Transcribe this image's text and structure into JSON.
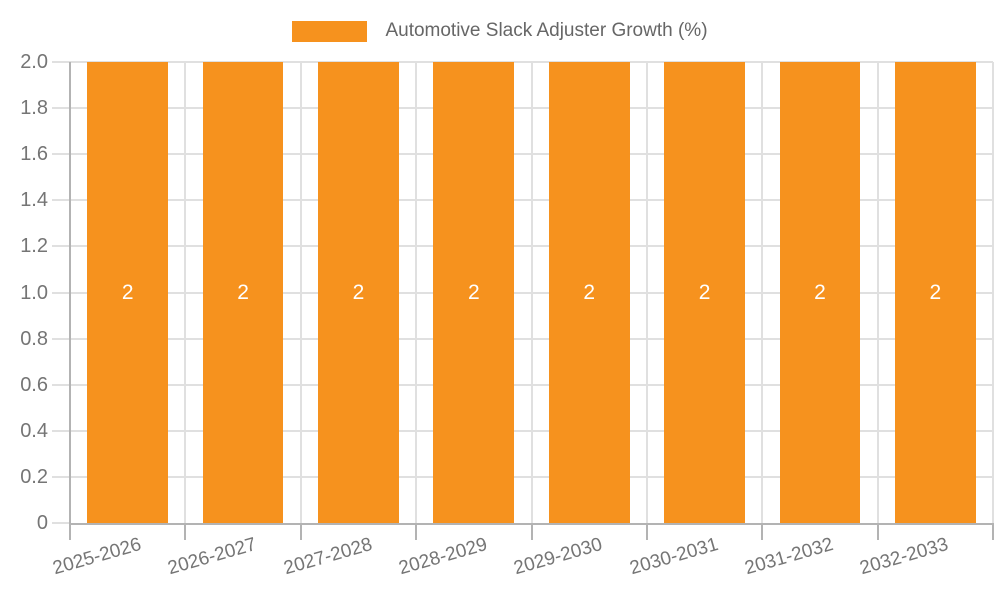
{
  "legend": {
    "label": "Automotive Slack Adjuster Growth (%)"
  },
  "chart_data": {
    "type": "bar",
    "title": "Automotive Slack Adjuster Growth (%)",
    "categories": [
      "2025-2026",
      "2026-2027",
      "2027-2028",
      "2028-2029",
      "2029-2030",
      "2030-2031",
      "2031-2032",
      "2032-2033"
    ],
    "series": [
      {
        "name": "Automotive Slack Adjuster Growth (%)",
        "values": [
          2,
          2,
          2,
          2,
          2,
          2,
          2,
          2
        ]
      }
    ],
    "values": [
      2,
      2,
      2,
      2,
      2,
      2,
      2,
      2
    ],
    "bar_value_labels": [
      "2",
      "2",
      "2",
      "2",
      "2",
      "2",
      "2",
      "2"
    ],
    "xlabel": "",
    "ylabel": "",
    "ylim": [
      0,
      2
    ],
    "yticks": [
      0,
      0.2,
      0.4,
      0.6,
      0.8,
      1.0,
      1.2,
      1.4,
      1.6,
      1.8,
      2.0
    ],
    "ytick_labels": [
      "0",
      "0.2",
      "0.4",
      "0.6",
      "0.8",
      "1.0",
      "1.2",
      "1.4",
      "1.6",
      "1.8",
      "2.0"
    ],
    "grid": true,
    "legend_position": "top-center"
  },
  "colors": {
    "bar": "#f6921e",
    "axis": "#b3b3b3",
    "grid": "#e0e0e0",
    "tick_label": "#757575",
    "legend_text": "#666666",
    "value_label": "#ffffff",
    "background": "#ffffff"
  }
}
